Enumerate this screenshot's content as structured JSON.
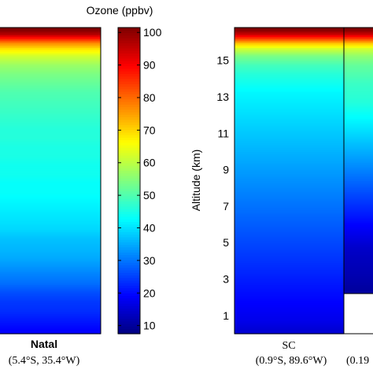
{
  "chart_data": {
    "type": "heatmap",
    "colorbar": {
      "title": "Ozone (ppbv)",
      "ticks": [
        10,
        20,
        30,
        40,
        50,
        60,
        70,
        80,
        90,
        100
      ],
      "range": [
        5,
        100
      ],
      "colormap": "jet"
    },
    "panels": [
      {
        "site": "Natal",
        "coords": "(5.4°S, 35.4°W)",
        "altitude_range_km": [
          0,
          16.8
        ],
        "profile": [
          {
            "altitude": 0.25,
            "ozone": 17
          },
          {
            "altitude": 0.75,
            "ozone": 19
          },
          {
            "altitude": 1.25,
            "ozone": 21
          },
          {
            "altitude": 1.75,
            "ozone": 22
          },
          {
            "altitude": 2.25,
            "ozone": 24
          },
          {
            "altitude": 2.75,
            "ozone": 27
          },
          {
            "altitude": 3.25,
            "ozone": 29
          },
          {
            "altitude": 3.75,
            "ozone": 31
          },
          {
            "altitude": 4.25,
            "ozone": 33
          },
          {
            "altitude": 4.75,
            "ozone": 34
          },
          {
            "altitude": 5.25,
            "ozone": 35
          },
          {
            "altitude": 5.75,
            "ozone": 37
          },
          {
            "altitude": 6.25,
            "ozone": 38
          },
          {
            "altitude": 6.75,
            "ozone": 39
          },
          {
            "altitude": 7.25,
            "ozone": 40
          },
          {
            "altitude": 7.75,
            "ozone": 41
          },
          {
            "altitude": 8.25,
            "ozone": 41
          },
          {
            "altitude": 8.75,
            "ozone": 42
          },
          {
            "altitude": 9.25,
            "ozone": 42
          },
          {
            "altitude": 9.75,
            "ozone": 43
          },
          {
            "altitude": 10.25,
            "ozone": 43
          },
          {
            "altitude": 10.75,
            "ozone": 44
          },
          {
            "altitude": 11.25,
            "ozone": 44
          },
          {
            "altitude": 11.75,
            "ozone": 45
          },
          {
            "altitude": 12.25,
            "ozone": 46
          },
          {
            "altitude": 12.75,
            "ozone": 47
          },
          {
            "altitude": 13.25,
            "ozone": 48
          },
          {
            "altitude": 13.75,
            "ozone": 50
          },
          {
            "altitude": 14.25,
            "ozone": 52
          },
          {
            "altitude": 14.75,
            "ozone": 55
          },
          {
            "altitude": 15.25,
            "ozone": 60
          },
          {
            "altitude": 15.65,
            "ozone": 67
          },
          {
            "altitude": 15.95,
            "ozone": 75
          },
          {
            "altitude": 16.2,
            "ozone": 85
          },
          {
            "altitude": 16.45,
            "ozone": 95
          },
          {
            "altitude": 16.7,
            "ozone": 100
          }
        ]
      },
      {
        "site": "SC",
        "coords": "(0.9°S, 89.6°W)",
        "altitude_range_km": [
          0,
          16.8
        ],
        "yticks": [
          1,
          3,
          5,
          7,
          9,
          11,
          13,
          15
        ],
        "ylabel": "Altitude (km)",
        "profile": [
          {
            "altitude": 0.25,
            "ozone": 13
          },
          {
            "altitude": 0.75,
            "ozone": 15
          },
          {
            "altitude": 1.25,
            "ozone": 16
          },
          {
            "altitude": 1.75,
            "ozone": 17
          },
          {
            "altitude": 2.25,
            "ozone": 18
          },
          {
            "altitude": 2.75,
            "ozone": 19
          },
          {
            "altitude": 3.25,
            "ozone": 20
          },
          {
            "altitude": 3.75,
            "ozone": 21
          },
          {
            "altitude": 4.25,
            "ozone": 22
          },
          {
            "altitude": 4.75,
            "ozone": 23
          },
          {
            "altitude": 5.25,
            "ozone": 24
          },
          {
            "altitude": 5.75,
            "ozone": 25
          },
          {
            "altitude": 6.25,
            "ozone": 26
          },
          {
            "altitude": 6.75,
            "ozone": 27
          },
          {
            "altitude": 7.25,
            "ozone": 28
          },
          {
            "altitude": 7.75,
            "ozone": 29
          },
          {
            "altitude": 8.25,
            "ozone": 30
          },
          {
            "altitude": 8.75,
            "ozone": 31
          },
          {
            "altitude": 9.25,
            "ozone": 32
          },
          {
            "altitude": 9.75,
            "ozone": 33
          },
          {
            "altitude": 10.25,
            "ozone": 34
          },
          {
            "altitude": 10.75,
            "ozone": 35
          },
          {
            "altitude": 11.25,
            "ozone": 36
          },
          {
            "altitude": 11.75,
            "ozone": 37
          },
          {
            "altitude": 12.25,
            "ozone": 38
          },
          {
            "altitude": 12.75,
            "ozone": 39
          },
          {
            "altitude": 13.25,
            "ozone": 40
          },
          {
            "altitude": 13.75,
            "ozone": 42
          },
          {
            "altitude": 14.25,
            "ozone": 44
          },
          {
            "altitude": 14.75,
            "ozone": 47
          },
          {
            "altitude": 15.25,
            "ozone": 52
          },
          {
            "altitude": 15.65,
            "ozone": 60
          },
          {
            "altitude": 15.95,
            "ozone": 70
          },
          {
            "altitude": 16.2,
            "ozone": 82
          },
          {
            "altitude": 16.45,
            "ozone": 93
          },
          {
            "altitude": 16.7,
            "ozone": 100
          }
        ]
      },
      {
        "site": "",
        "coords": "(0.19",
        "altitude_range_km": [
          0,
          16.8
        ],
        "data_min_altitude_km": 2.2,
        "profile": [
          {
            "altitude": 2.45,
            "ozone": 8
          },
          {
            "altitude": 2.9,
            "ozone": 9
          },
          {
            "altitude": 3.5,
            "ozone": 10
          },
          {
            "altitude": 4.25,
            "ozone": 11
          },
          {
            "altitude": 4.75,
            "ozone": 12
          },
          {
            "altitude": 5.25,
            "ozone": 14
          },
          {
            "altitude": 5.75,
            "ozone": 16
          },
          {
            "altitude": 6.25,
            "ozone": 18
          },
          {
            "altitude": 6.75,
            "ozone": 20
          },
          {
            "altitude": 7.25,
            "ozone": 22
          },
          {
            "altitude": 7.75,
            "ozone": 24
          },
          {
            "altitude": 8.25,
            "ozone": 26
          },
          {
            "altitude": 8.75,
            "ozone": 28
          },
          {
            "altitude": 9.25,
            "ozone": 30
          },
          {
            "altitude": 9.75,
            "ozone": 32
          },
          {
            "altitude": 10.25,
            "ozone": 34
          },
          {
            "altitude": 10.75,
            "ozone": 36
          },
          {
            "altitude": 11.25,
            "ozone": 38
          },
          {
            "altitude": 11.75,
            "ozone": 40
          },
          {
            "altitude": 12.25,
            "ozone": 42
          },
          {
            "altitude": 12.75,
            "ozone": 44
          },
          {
            "altitude": 13.25,
            "ozone": 45
          },
          {
            "altitude": 13.75,
            "ozone": 46
          },
          {
            "altitude": 14.25,
            "ozone": 48
          },
          {
            "altitude": 14.75,
            "ozone": 50
          },
          {
            "altitude": 15.25,
            "ozone": 54
          },
          {
            "altitude": 15.65,
            "ozone": 60
          },
          {
            "altitude": 15.95,
            "ozone": 70
          },
          {
            "altitude": 16.2,
            "ozone": 82
          },
          {
            "altitude": 16.45,
            "ozone": 93
          },
          {
            "altitude": 16.7,
            "ozone": 100
          }
        ]
      }
    ]
  }
}
